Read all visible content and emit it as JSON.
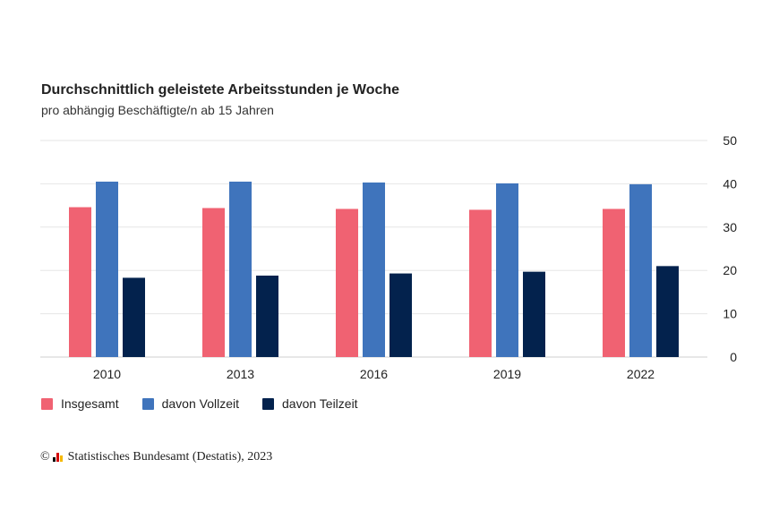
{
  "chart_data": {
    "type": "bar",
    "title": "Durchschnittlich geleistete Arbeitsstunden je Woche",
    "subtitle": "pro abhängig Beschäftigte/n ab 15 Jahren",
    "categories": [
      "2010",
      "2013",
      "2016",
      "2019",
      "2022"
    ],
    "series": [
      {
        "name": "Insgesamt",
        "color": "#f06272",
        "values": [
          34.6,
          34.4,
          34.2,
          34.0,
          34.2
        ]
      },
      {
        "name": "davon Vollzeit",
        "color": "#3f74bc",
        "values": [
          40.5,
          40.5,
          40.3,
          40.1,
          39.9
        ]
      },
      {
        "name": "davon Teilzeit",
        "color": "#03224d",
        "values": [
          18.3,
          18.8,
          19.3,
          19.7,
          21.0
        ]
      }
    ],
    "ylim": [
      0,
      50
    ],
    "yticks": [
      0,
      10,
      20,
      30,
      40,
      50
    ],
    "yaxis_position": "right",
    "grid": true,
    "legend_position": "bottom-left",
    "xlabel": "",
    "ylabel": ""
  },
  "source": {
    "copyright_symbol": "©",
    "text": "Statistisches Bundesamt (Destatis), 2023"
  }
}
